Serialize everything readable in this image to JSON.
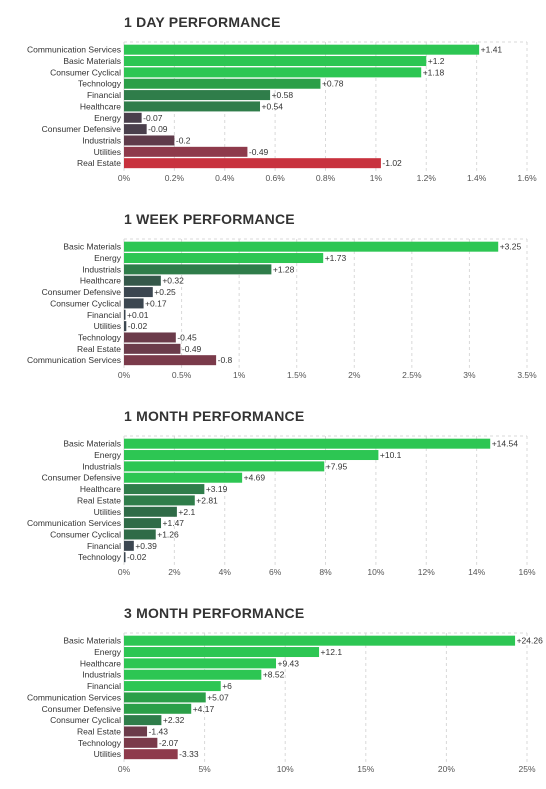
{
  "colors": {
    "strong_pos": "#2dc653",
    "mid_pos": "#2b9f48",
    "weak_pos": "#2f6b47",
    "neutral": "#3b4650",
    "weak_neg": "#6b3b4a",
    "mid_neg": "#8e3a4b",
    "strong_neg": "#c8323e",
    "grid": "#d9d9d9",
    "label": "#333333"
  },
  "chart_data": [
    {
      "type": "bar",
      "title": "1 DAY PERFORMANCE",
      "xlim": [
        0,
        1.6
      ],
      "ticks": [
        0,
        0.2,
        0.4,
        0.6,
        0.8,
        1,
        1.2,
        1.4,
        1.6
      ],
      "tick_labels": [
        "0%",
        "0.2%",
        "0.4%",
        "0.6%",
        "0.8%",
        "1%",
        "1.2%",
        "1.4%",
        "1.6%"
      ],
      "categories": [
        "Communication Services",
        "Basic Materials",
        "Consumer Cyclical",
        "Technology",
        "Financial",
        "Healthcare",
        "Energy",
        "Consumer Defensive",
        "Industrials",
        "Utilities",
        "Real Estate"
      ],
      "values": [
        1.41,
        1.2,
        1.18,
        0.78,
        0.58,
        0.54,
        -0.07,
        -0.09,
        -0.2,
        -0.49,
        -1.02
      ],
      "value_labels": [
        "+1.41",
        "+1.2",
        "+1.18",
        "+0.78",
        "+0.58",
        "+0.54",
        "-0.07",
        "-0.09",
        "-0.2",
        "-0.49",
        "-1.02"
      ],
      "bar_colors": [
        "#2dc653",
        "#2dc653",
        "#2dc653",
        "#2b9f48",
        "#2f7d4a",
        "#2f7d4a",
        "#4a3f4c",
        "#4a3f4c",
        "#5f3b4a",
        "#8e3a4b",
        "#c8323e"
      ]
    },
    {
      "type": "bar",
      "title": "1 WEEK PERFORMANCE",
      "xlim": [
        0,
        3.5
      ],
      "ticks": [
        0,
        0.5,
        1,
        1.5,
        2,
        2.5,
        3,
        3.5
      ],
      "tick_labels": [
        "0%",
        "0.5%",
        "1%",
        "1.5%",
        "2%",
        "2.5%",
        "3%",
        "3.5%"
      ],
      "categories": [
        "Basic Materials",
        "Energy",
        "Industrials",
        "Healthcare",
        "Consumer Defensive",
        "Consumer Cyclical",
        "Financial",
        "Utilities",
        "Technology",
        "Real Estate",
        "Communication Services"
      ],
      "values": [
        3.25,
        1.73,
        1.28,
        0.32,
        0.25,
        0.17,
        0.01,
        -0.02,
        -0.45,
        -0.49,
        -0.8
      ],
      "value_labels": [
        "+3.25",
        "+1.73",
        "+1.28",
        "+0.32",
        "+0.25",
        "+0.17",
        "+0.01",
        "-0.02",
        "-0.45",
        "-0.49",
        "-0.8"
      ],
      "bar_colors": [
        "#2dc653",
        "#2dc653",
        "#2f7d4a",
        "#35584a",
        "#3b4650",
        "#3b4650",
        "#3b4650",
        "#3b4650",
        "#6b3b4a",
        "#6b3b4a",
        "#7a3a4a"
      ]
    },
    {
      "type": "bar",
      "title": "1 MONTH PERFORMANCE",
      "xlim": [
        0,
        16
      ],
      "ticks": [
        0,
        2,
        4,
        6,
        8,
        10,
        12,
        14,
        16
      ],
      "tick_labels": [
        "0%",
        "2%",
        "4%",
        "6%",
        "8%",
        "10%",
        "12%",
        "14%",
        "16%"
      ],
      "categories": [
        "Basic Materials",
        "Energy",
        "Industrials",
        "Consumer Defensive",
        "Healthcare",
        "Real Estate",
        "Utilities",
        "Communication Services",
        "Consumer Cyclical",
        "Financial",
        "Technology"
      ],
      "values": [
        14.54,
        10.1,
        7.95,
        4.69,
        3.19,
        2.81,
        2.1,
        1.47,
        1.26,
        0.39,
        -0.02
      ],
      "value_labels": [
        "+14.54",
        "+10.1",
        "+7.95",
        "+4.69",
        "+3.19",
        "+2.81",
        "+2.1",
        "+1.47",
        "+1.26",
        "+0.39",
        "-0.02"
      ],
      "bar_colors": [
        "#2dc653",
        "#2dc653",
        "#2dc653",
        "#2dc653",
        "#2f7d4a",
        "#2f7d4a",
        "#2f6b47",
        "#2f6b47",
        "#2f6b47",
        "#3b4650",
        "#3b4650"
      ]
    },
    {
      "type": "bar",
      "title": "3 MONTH PERFORMANCE",
      "xlim": [
        0,
        25
      ],
      "ticks": [
        0,
        5,
        10,
        15,
        20,
        25
      ],
      "tick_labels": [
        "0%",
        "5%",
        "10%",
        "15%",
        "20%",
        "25%"
      ],
      "categories": [
        "Basic Materials",
        "Energy",
        "Healthcare",
        "Industrials",
        "Financial",
        "Communication Services",
        "Consumer Defensive",
        "Consumer Cyclical",
        "Real Estate",
        "Technology",
        "Utilities"
      ],
      "values": [
        24.26,
        12.1,
        9.43,
        8.52,
        6,
        5.07,
        4.17,
        2.32,
        -1.43,
        -2.07,
        -3.33
      ],
      "value_labels": [
        "+24.26",
        "+12.1",
        "+9.43",
        "+8.52",
        "+6",
        "+5.07",
        "+4.17",
        "+2.32",
        "-1.43",
        "-2.07",
        "-3.33"
      ],
      "bar_colors": [
        "#2dc653",
        "#2dc653",
        "#2dc653",
        "#2dc653",
        "#2dc653",
        "#2b9f48",
        "#2b9f48",
        "#2f7d4a",
        "#6b3b4a",
        "#7a3a4a",
        "#8e3a4b"
      ]
    }
  ]
}
